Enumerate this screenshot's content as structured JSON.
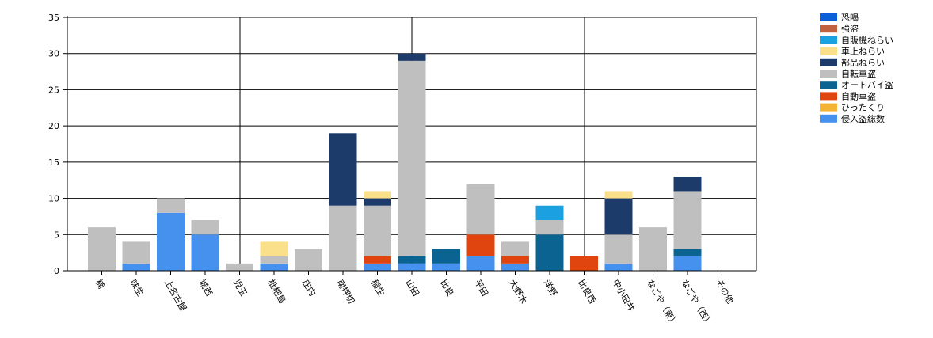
{
  "chart_data": {
    "type": "bar",
    "stacked": true,
    "ylim": [
      0,
      35
    ],
    "yticks": [
      0,
      5,
      10,
      15,
      20,
      25,
      30,
      35
    ],
    "grid": "horizontal and vertical",
    "legend_placement": "top-right",
    "categories": [
      "楠",
      "味生",
      "上名古屋",
      "城西",
      "児玉",
      "枇杷島",
      "庄内",
      "南押切",
      "稲生",
      "山田",
      "比良",
      "平田",
      "大野木",
      "洋野",
      "比良西",
      "中小田井",
      "なごや（東）",
      "なごや（西）",
      "その他"
    ],
    "series": [
      {
        "name": "恐喝",
        "color": "#0b5ed8",
        "values": [
          0,
          0,
          0,
          0,
          0,
          0,
          0,
          0,
          0,
          0,
          0,
          0,
          0,
          0,
          0,
          0,
          0,
          0,
          0
        ]
      },
      {
        "name": "強盗",
        "color": "#c0623f",
        "values": [
          0,
          0,
          0,
          0,
          0,
          0,
          0,
          0,
          0,
          0,
          0,
          0,
          0,
          0,
          0,
          0,
          0,
          0,
          0
        ]
      },
      {
        "name": "自販機ねらい",
        "color": "#1ba0e2",
        "values": [
          0,
          0,
          0,
          0,
          0,
          0,
          0,
          0,
          0,
          0,
          0,
          0,
          0,
          2,
          0,
          0,
          0,
          0,
          0
        ]
      },
      {
        "name": "車上ねらい",
        "color": "#fbe08c",
        "values": [
          0,
          0,
          0,
          0,
          0,
          2,
          0,
          0,
          1,
          0,
          0,
          0,
          0,
          0,
          0,
          1,
          0,
          0,
          0
        ]
      },
      {
        "name": "部品ねらい",
        "color": "#1c3b6a",
        "values": [
          0,
          0,
          0,
          0,
          0,
          0,
          0,
          10,
          1,
          1,
          0,
          0,
          0,
          0,
          0,
          5,
          0,
          2,
          0
        ]
      },
      {
        "name": "自転車盗",
        "color": "#bfbfbf",
        "values": [
          6,
          3,
          2,
          2,
          1,
          1,
          3,
          9,
          7,
          27,
          0,
          7,
          2,
          2,
          0,
          4,
          6,
          8,
          0
        ]
      },
      {
        "name": "オートバイ盗",
        "color": "#0b6391",
        "values": [
          0,
          0,
          0,
          0,
          0,
          0,
          0,
          0,
          0,
          1,
          2,
          0,
          0,
          5,
          0,
          0,
          0,
          1,
          0
        ]
      },
      {
        "name": "自動車盗",
        "color": "#e0450f",
        "values": [
          0,
          0,
          0,
          0,
          0,
          0,
          0,
          0,
          1,
          0,
          0,
          3,
          1,
          0,
          2,
          0,
          0,
          0,
          0
        ]
      },
      {
        "name": "ひったくり",
        "color": "#f5b335",
        "values": [
          0,
          0,
          0,
          0,
          0,
          0,
          0,
          0,
          0,
          0,
          0,
          0,
          0,
          0,
          0,
          0,
          0,
          0,
          0
        ]
      },
      {
        "name": "侵入盗総数",
        "color": "#4591ed",
        "values": [
          0,
          1,
          8,
          5,
          0,
          1,
          0,
          0,
          1,
          1,
          1,
          2,
          1,
          0,
          0,
          1,
          0,
          2,
          0
        ]
      }
    ],
    "stack_order": [
      "侵入盗総数",
      "ひったくり",
      "自動車盗",
      "オートバイ盗",
      "自転車盗",
      "部品ねらい",
      "車上ねらい",
      "自販機ねらい",
      "強盗",
      "恐喝"
    ]
  }
}
